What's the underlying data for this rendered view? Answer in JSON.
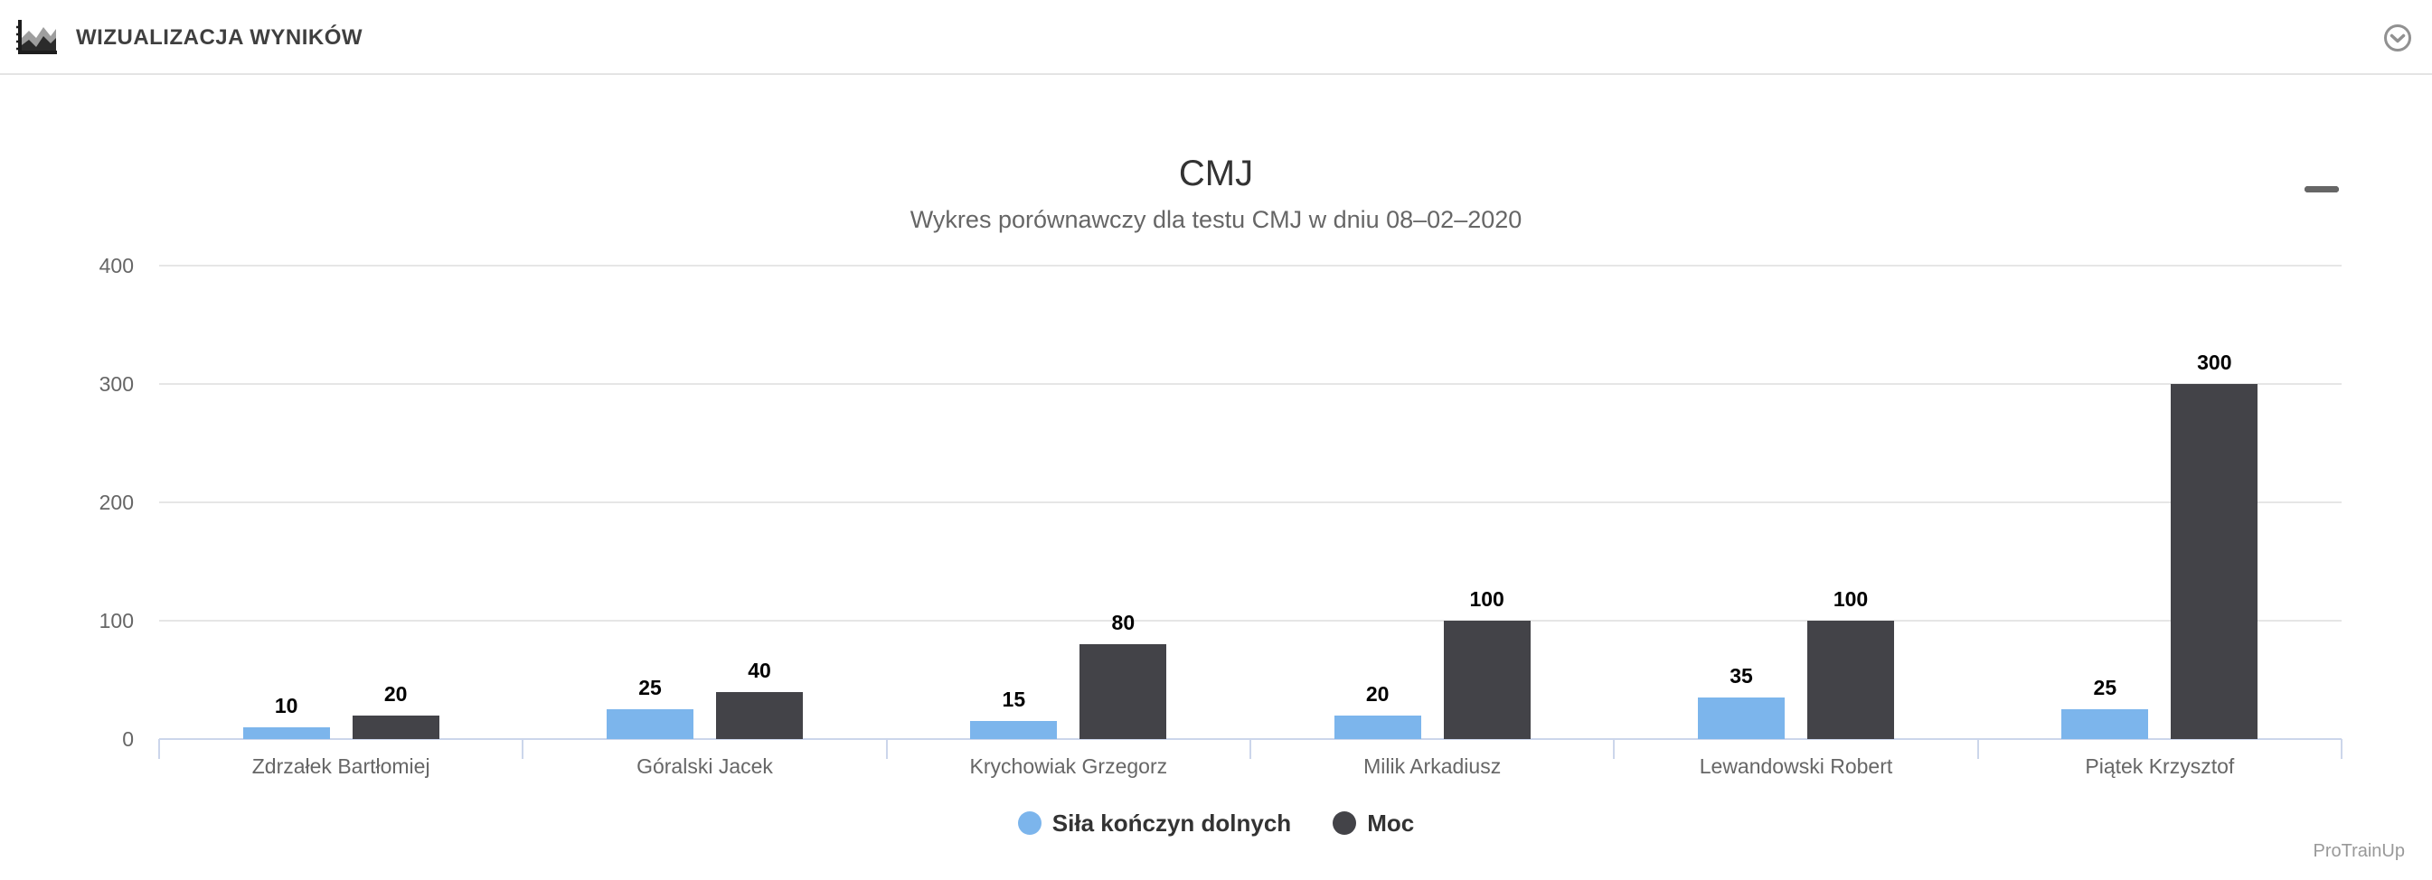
{
  "header": {
    "title": "WIZUALIZACJA WYNIKÓW",
    "logo_icon": "area-chart-icon",
    "collapse_icon": "chevron-down-circle-icon"
  },
  "chart_data": {
    "type": "bar",
    "title": "CMJ",
    "subtitle": "Wykres porównawczy dla testu CMJ w dniu 08–02–2020",
    "categories": [
      "Zdrzałek Bartłomiej",
      "Góralski Jacek",
      "Krychowiak Grzegorz",
      "Milik Arkadiusz",
      "Lewandowski Robert",
      "Piątek Krzysztof"
    ],
    "series": [
      {
        "name": "Siła kończyn dolnych",
        "color": "#7cb5ec",
        "values": [
          10,
          25,
          15,
          20,
          35,
          25
        ]
      },
      {
        "name": "Moc",
        "color": "#434348",
        "values": [
          20,
          40,
          80,
          100,
          100,
          300
        ]
      }
    ],
    "ylim": [
      0,
      400
    ],
    "yticks": [
      0,
      100,
      200,
      300,
      400
    ],
    "xlabel": "",
    "ylabel": "",
    "grid": true,
    "data_labels": true,
    "legend_position": "bottom"
  },
  "chart_ui": {
    "context_menu_icon": "hamburger-icon",
    "credits": "ProTrainUp"
  },
  "colors": {
    "axis_line": "#ccd6eb",
    "gridline": "#e6e6e6",
    "axis_text": "#666666",
    "data_label_text": "#000000",
    "title_text": "#333333",
    "subtitle_text": "#666666",
    "header_text": "#3f3f3f",
    "icon_gray": "#919191",
    "credits_text": "#999999"
  }
}
